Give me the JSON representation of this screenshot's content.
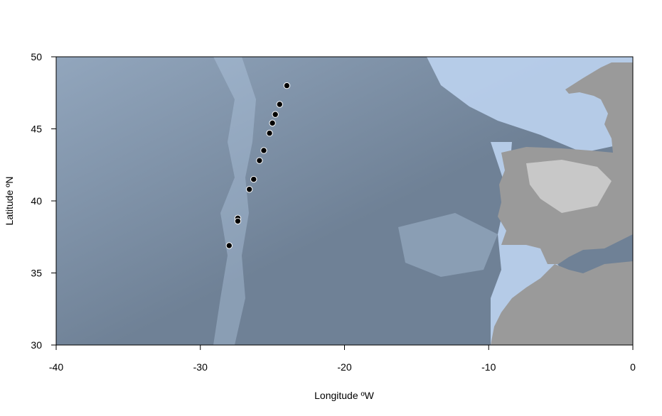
{
  "chart_data": {
    "type": "scatter",
    "xlabel": "Longitude ºW",
    "ylabel": "Latitude ºN",
    "xlim": [
      -40,
      0
    ],
    "ylim": [
      30,
      50
    ],
    "x_ticks": [
      -40,
      -30,
      -20,
      -10,
      0
    ],
    "y_ticks": [
      30,
      35,
      40,
      45,
      50
    ],
    "x_tick_labels": [
      "-40",
      "-30",
      "-20",
      "-10",
      "0"
    ],
    "y_tick_labels": [
      "30",
      "35",
      "40",
      "45",
      "50"
    ],
    "grid": false,
    "colors": {
      "ocean_deep": "#6f8196",
      "ocean_mid": "#92a6bd",
      "ocean_shallow": "#bcd3ef",
      "land": "#9a9a9a",
      "land_high": "#dcdcdc",
      "points": "#000000"
    },
    "series": [
      {
        "marker": "filled-circle",
        "points": [
          {
            "x": -24.0,
            "y": 48.0
          },
          {
            "x": -24.5,
            "y": 46.7
          },
          {
            "x": -24.8,
            "y": 46.0
          },
          {
            "x": -25.0,
            "y": 45.4
          },
          {
            "x": -25.2,
            "y": 44.7
          },
          {
            "x": -25.6,
            "y": 43.5
          },
          {
            "x": -25.9,
            "y": 42.8
          },
          {
            "x": -26.3,
            "y": 41.5
          },
          {
            "x": -26.6,
            "y": 40.8
          },
          {
            "x": -27.4,
            "y": 38.8
          },
          {
            "x": -27.4,
            "y": 38.6
          },
          {
            "x": -28.0,
            "y": 36.9
          }
        ]
      }
    ]
  }
}
